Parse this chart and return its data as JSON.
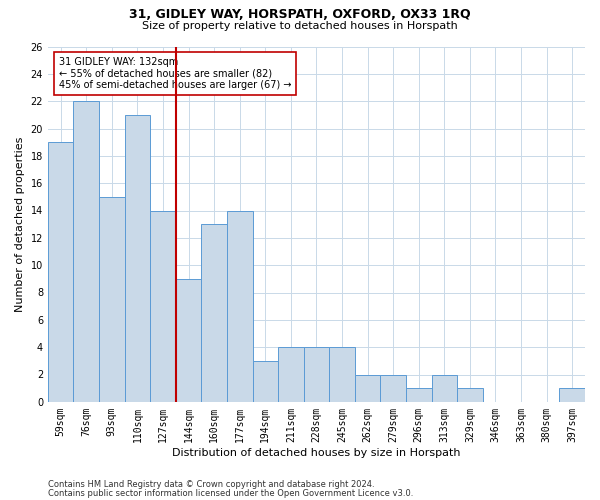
{
  "title": "31, GIDLEY WAY, HORSPATH, OXFORD, OX33 1RQ",
  "subtitle": "Size of property relative to detached houses in Horspath",
  "xlabel": "Distribution of detached houses by size in Horspath",
  "ylabel": "Number of detached properties",
  "bar_labels": [
    "59sqm",
    "76sqm",
    "93sqm",
    "110sqm",
    "127sqm",
    "144sqm",
    "160sqm",
    "177sqm",
    "194sqm",
    "211sqm",
    "228sqm",
    "245sqm",
    "262sqm",
    "279sqm",
    "296sqm",
    "313sqm",
    "329sqm",
    "346sqm",
    "363sqm",
    "380sqm",
    "397sqm"
  ],
  "bar_values": [
    19,
    22,
    15,
    21,
    14,
    9,
    13,
    14,
    3,
    4,
    4,
    4,
    2,
    2,
    1,
    2,
    1,
    0,
    0,
    0,
    1
  ],
  "bar_color": "#c9d9e8",
  "bar_edge_color": "#5b9bd5",
  "vline_x_index": 4.5,
  "vline_color": "#c00000",
  "annotation_line1": "31 GIDLEY WAY: 132sqm",
  "annotation_line2": "← 55% of detached houses are smaller (82)",
  "annotation_line3": "45% of semi-detached houses are larger (67) →",
  "annotation_box_color": "#c00000",
  "ylim": [
    0,
    26
  ],
  "yticks": [
    0,
    2,
    4,
    6,
    8,
    10,
    12,
    14,
    16,
    18,
    20,
    22,
    24,
    26
  ],
  "footer_line1": "Contains HM Land Registry data © Crown copyright and database right 2024.",
  "footer_line2": "Contains public sector information licensed under the Open Government Licence v3.0.",
  "background_color": "#ffffff",
  "grid_color": "#c9d9e8",
  "title_fontsize": 9,
  "subtitle_fontsize": 8,
  "xlabel_fontsize": 8,
  "ylabel_fontsize": 8,
  "tick_fontsize": 7,
  "annotation_fontsize": 7,
  "footer_fontsize": 6
}
